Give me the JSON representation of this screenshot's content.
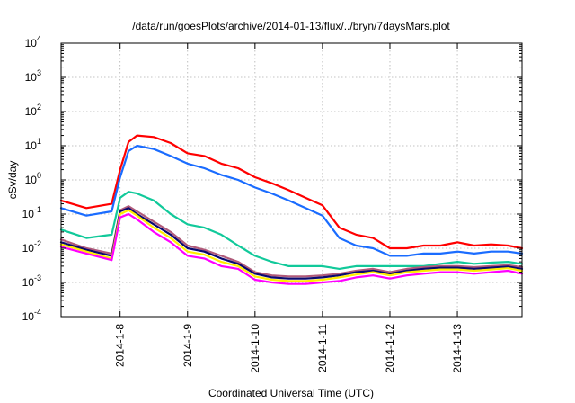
{
  "chart_data": {
    "type": "line",
    "title": "/data/run/goesPlots/archive/2014-01-13/flux/../bryn/7daysMars.plot",
    "xlabel": "Coordinated Universal Time (UTC)",
    "ylabel": "cSv/day",
    "y_scale": "log",
    "ylim": [
      0.0001,
      10000
    ],
    "xlim": [
      "2014-01-07 03:00",
      "2014-01-13 23:00"
    ],
    "y_ticks": [
      {
        "base": "10",
        "exp": "-4"
      },
      {
        "base": "10",
        "exp": "-3"
      },
      {
        "base": "10",
        "exp": "-2"
      },
      {
        "base": "10",
        "exp": "-1"
      },
      {
        "base": "10",
        "exp": "0"
      },
      {
        "base": "10",
        "exp": "1"
      },
      {
        "base": "10",
        "exp": "2"
      },
      {
        "base": "10",
        "exp": "3"
      },
      {
        "base": "10",
        "exp": "4"
      }
    ],
    "x_ticks": [
      "2014-1-8",
      "2014-1-9",
      "2014-1-10",
      "2014-1-11",
      "2014-1-12",
      "2014-1-13"
    ],
    "grid": true,
    "x": [
      "2014-01-07 03:00",
      "2014-01-07 12:00",
      "2014-01-07 21:00",
      "2014-01-08 00:00",
      "2014-01-08 03:00",
      "2014-01-08 06:00",
      "2014-01-08 12:00",
      "2014-01-08 18:00",
      "2014-01-09 00:00",
      "2014-01-09 06:00",
      "2014-01-09 12:00",
      "2014-01-09 18:00",
      "2014-01-10 00:00",
      "2014-01-10 06:00",
      "2014-01-10 12:00",
      "2014-01-10 18:00",
      "2014-01-11 00:00",
      "2014-01-11 06:00",
      "2014-01-11 12:00",
      "2014-01-11 18:00",
      "2014-01-12 00:00",
      "2014-01-12 06:00",
      "2014-01-12 12:00",
      "2014-01-12 18:00",
      "2014-01-13 00:00",
      "2014-01-13 06:00",
      "2014-01-13 12:00",
      "2014-01-13 18:00",
      "2014-01-13 23:00"
    ],
    "series": [
      {
        "color": "#ff0000",
        "values": [
          0.25,
          0.15,
          0.2,
          2.0,
          13,
          20,
          18,
          12,
          6,
          5,
          3,
          2.2,
          1.2,
          0.8,
          0.5,
          0.3,
          0.18,
          0.04,
          0.025,
          0.02,
          0.01,
          0.01,
          0.012,
          0.012,
          0.015,
          0.012,
          0.013,
          0.012,
          0.01
        ]
      },
      {
        "color": "#1a6cff",
        "values": [
          0.15,
          0.09,
          0.12,
          1.2,
          7,
          10,
          8,
          5,
          3,
          2.2,
          1.4,
          1.0,
          0.6,
          0.4,
          0.25,
          0.15,
          0.09,
          0.02,
          0.012,
          0.01,
          0.006,
          0.006,
          0.007,
          0.007,
          0.008,
          0.007,
          0.008,
          0.008,
          0.007
        ]
      },
      {
        "color": "#11c99a",
        "values": [
          0.035,
          0.02,
          0.025,
          0.3,
          0.45,
          0.4,
          0.25,
          0.1,
          0.05,
          0.04,
          0.025,
          0.012,
          0.006,
          0.004,
          0.003,
          0.003,
          0.003,
          0.0025,
          0.003,
          0.003,
          0.003,
          0.003,
          0.003,
          0.0035,
          0.004,
          0.0035,
          0.0038,
          0.004,
          0.0035
        ]
      },
      {
        "color": "#b05a7a",
        "values": [
          0.018,
          0.01,
          0.007,
          0.13,
          0.17,
          0.12,
          0.06,
          0.03,
          0.012,
          0.009,
          0.006,
          0.004,
          0.002,
          0.0016,
          0.0015,
          0.0015,
          0.0016,
          0.0018,
          0.0022,
          0.0025,
          0.002,
          0.0025,
          0.0028,
          0.003,
          0.003,
          0.0028,
          0.003,
          0.0032,
          0.0028
        ]
      },
      {
        "color": "#0a0a70",
        "values": [
          0.015,
          0.009,
          0.006,
          0.12,
          0.15,
          0.1,
          0.05,
          0.025,
          0.01,
          0.008,
          0.005,
          0.0035,
          0.0018,
          0.0014,
          0.0013,
          0.0013,
          0.0014,
          0.0016,
          0.002,
          0.0022,
          0.0018,
          0.0022,
          0.0025,
          0.0027,
          0.0027,
          0.0025,
          0.0027,
          0.0029,
          0.0025
        ]
      },
      {
        "color": "#ffee00",
        "values": [
          0.013,
          0.008,
          0.005,
          0.1,
          0.13,
          0.09,
          0.04,
          0.02,
          0.008,
          0.0065,
          0.004,
          0.003,
          0.0015,
          0.0012,
          0.0011,
          0.0011,
          0.0012,
          0.0014,
          0.0017,
          0.002,
          0.0016,
          0.002,
          0.0022,
          0.0024,
          0.0024,
          0.0022,
          0.0024,
          0.0026,
          0.0022
        ]
      },
      {
        "color": "#ff00ff",
        "values": [
          0.011,
          0.007,
          0.0045,
          0.08,
          0.1,
          0.07,
          0.03,
          0.015,
          0.006,
          0.005,
          0.003,
          0.0025,
          0.0012,
          0.001,
          0.0009,
          0.0009,
          0.001,
          0.0011,
          0.0014,
          0.0016,
          0.0013,
          0.0016,
          0.0018,
          0.002,
          0.002,
          0.0018,
          0.002,
          0.0022,
          0.0018
        ]
      }
    ]
  }
}
